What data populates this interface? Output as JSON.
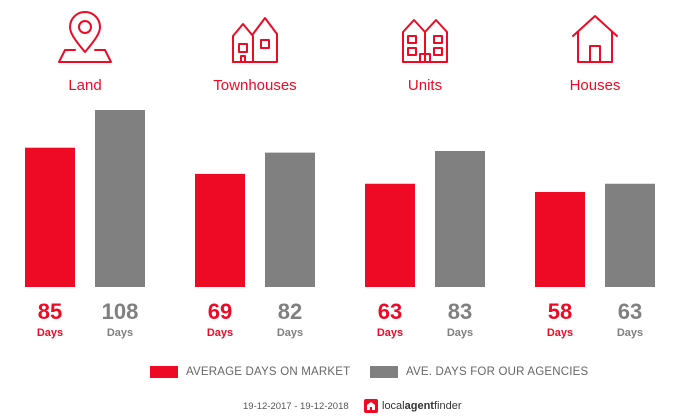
{
  "chart_data": {
    "type": "bar",
    "categories": [
      "Land",
      "Townhouses",
      "Units",
      "Houses"
    ],
    "category_icons": [
      "map-pin-icon",
      "townhouses-icon",
      "units-icon",
      "house-icon"
    ],
    "series": [
      {
        "name": "AVERAGE DAYS ON MARKET",
        "color": "#ee0a24",
        "values": [
          85,
          69,
          63,
          58
        ]
      },
      {
        "name": "AVE. DAYS FOR OUR AGENCIES",
        "color": "#808080",
        "values": [
          108,
          82,
          83,
          63
        ]
      }
    ],
    "value_unit": "Days",
    "ylim": [
      0,
      108
    ],
    "grid": false,
    "legend_position": "bottom"
  },
  "footer": {
    "date_range": "19-12-2017 - 19-12-2018",
    "brand_prefix": "local",
    "brand_strong": "agent",
    "brand_suffix": "finder"
  }
}
